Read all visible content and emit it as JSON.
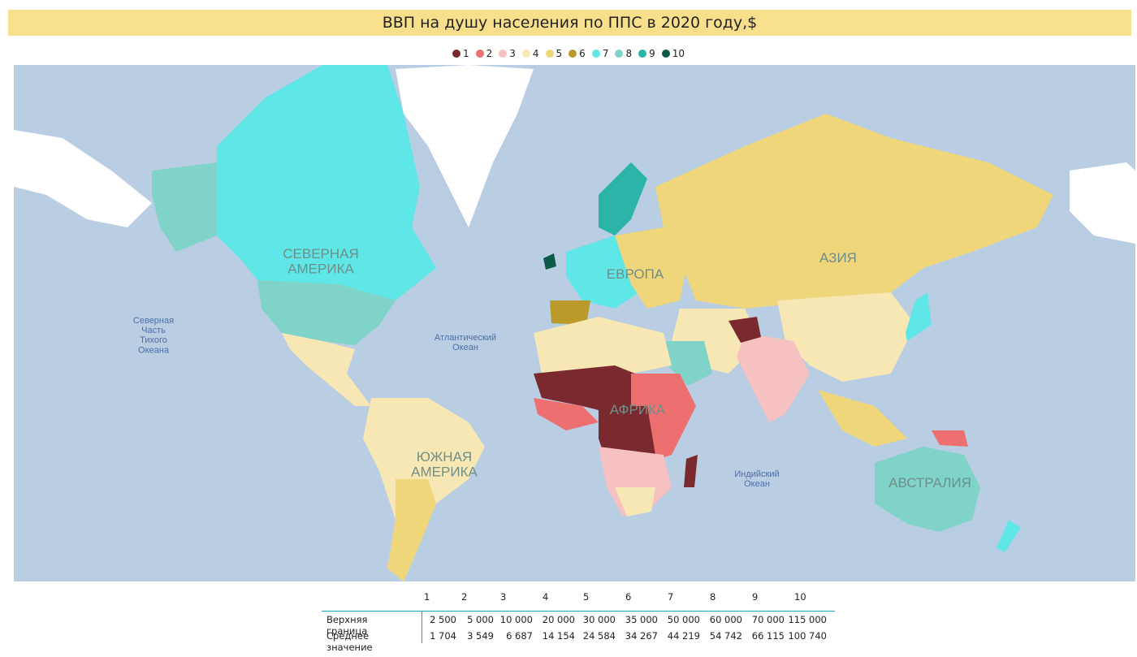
{
  "title": "ВВП на душу населения по ППС в 2020 году,$",
  "legend": [
    {
      "label": "1",
      "color": "#7a2a2e"
    },
    {
      "label": "2",
      "color": "#ee6f6f"
    },
    {
      "label": "3",
      "color": "#f6c1c1"
    },
    {
      "label": "4",
      "color": "#f7e7b4"
    },
    {
      "label": "5",
      "color": "#efd67a"
    },
    {
      "label": "6",
      "color": "#b99a2b"
    },
    {
      "label": "7",
      "color": "#5fe6e6"
    },
    {
      "label": "8",
      "color": "#7fd3c8"
    },
    {
      "label": "9",
      "color": "#2bb5a8"
    },
    {
      "label": "10",
      "color": "#0e5a4a"
    }
  ],
  "colors": {
    "ocean": "#b9cde3",
    "ice": "#ffffff"
  },
  "map_labels": {
    "north_america": "СЕВЕРНАЯ\nАМЕРИКА",
    "europe": "ЕВРОПА",
    "asia": "АЗИЯ",
    "africa": "АФРИКА",
    "south_america": "ЮЖНАЯ\nАМЕРИКА",
    "australia": "АВСТРАЛИЯ",
    "north_pacific": "Северная\nЧасть\nТихого\nОкеана",
    "atlantic": "Атлантический\nОкеан",
    "indian": "Индийский\nОкеан"
  },
  "table": {
    "headers": [
      "1",
      "2",
      "3",
      "4",
      "5",
      "6",
      "7",
      "8",
      "9",
      "10"
    ],
    "rows": [
      {
        "label": "Верхняя граница",
        "values": [
          "2 500",
          "5 000",
          "10 000",
          "20 000",
          "30 000",
          "35 000",
          "50 000",
          "60 000",
          "70 000",
          "115 000"
        ]
      },
      {
        "label": "Среднее значение",
        "values": [
          "1 704",
          "3 549",
          "6 687",
          "14 154",
          "24 584",
          "34 267",
          "44 219",
          "54 742",
          "66 115",
          "100 740"
        ]
      }
    ]
  }
}
